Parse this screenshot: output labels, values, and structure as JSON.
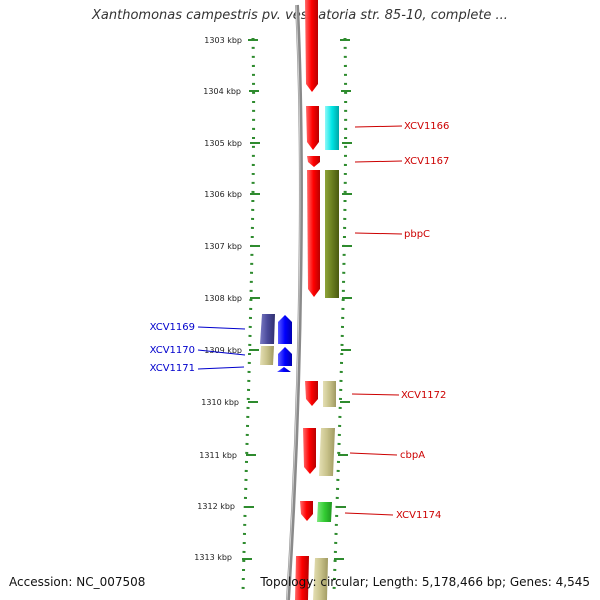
{
  "title": "Xanthomonas campestris pv. vesicatoria str. 85-10, complete ...",
  "footer": {
    "accession": "Accession: NC_007508",
    "stats": "Topology: circular; Length: 5,178,466 bp; Genes: 4,545"
  },
  "colors": {
    "scale": "#2e8b2e",
    "backbone": "#8a8a8a",
    "gene_red": "#ff0000",
    "gene_cyan": "#00e5e5",
    "gene_olive": "#6b7f1f",
    "gene_khaki": "#c8c28a",
    "gene_green": "#33cc33",
    "gene_navy": "#4a4a9a",
    "gene_blue": "#0000ff",
    "label_red": "#cc0000",
    "label_blue": "#0000cc"
  },
  "kbp_ticks": [
    "1303 kbp",
    "1304 kbp",
    "1305 kbp",
    "1306 kbp",
    "1307 kbp",
    "1308 kbp",
    "1309 kbp",
    "1310 kbp",
    "1311 kbp",
    "1312 kbp",
    "1313 kbp"
  ],
  "gene_labels": {
    "forward": [
      "XCV1166",
      "XCV1167",
      "pbpC",
      "XCV1172",
      "cbpA",
      "XCV1174"
    ],
    "reverse": [
      "XCV1169",
      "XCV1170",
      "XCV1171"
    ]
  }
}
